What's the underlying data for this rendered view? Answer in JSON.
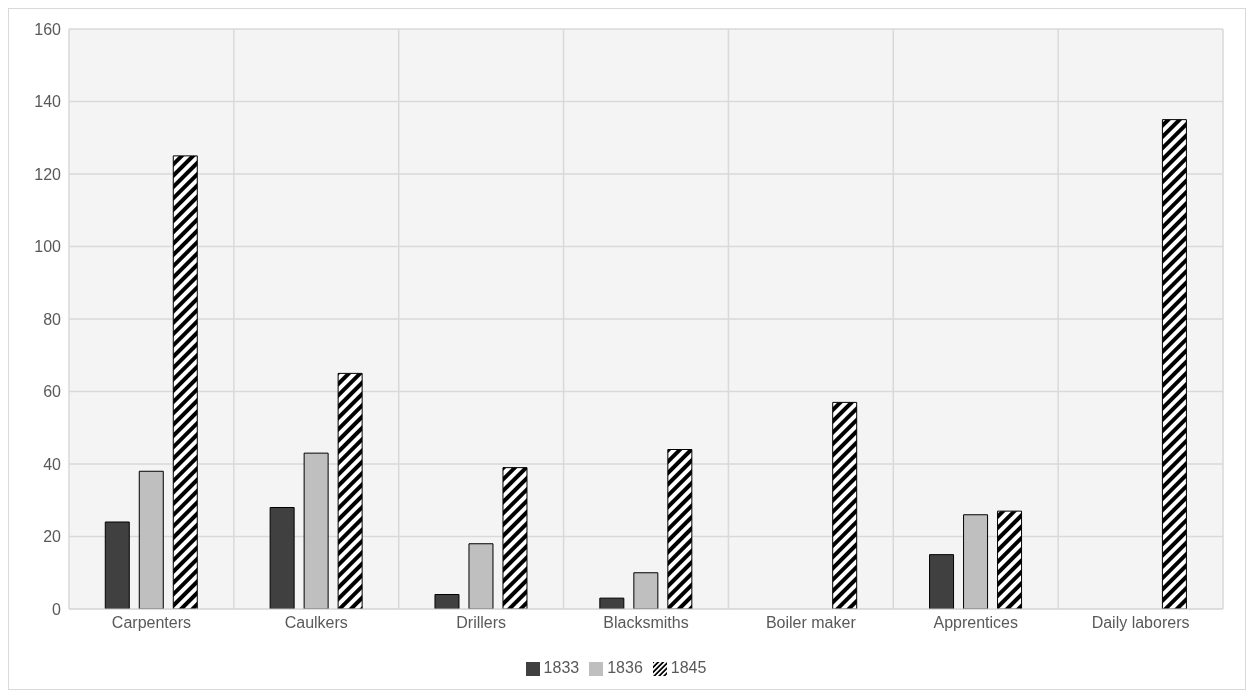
{
  "chart_data": {
    "type": "bar",
    "categories": [
      "Carpenters",
      "Caulkers",
      "Drillers",
      "Blacksmiths",
      "Boiler maker",
      "Apprentices",
      "Daily laborers"
    ],
    "series": [
      {
        "name": "1833",
        "color": "#404040",
        "values": [
          24,
          28,
          4,
          3,
          null,
          15,
          null
        ]
      },
      {
        "name": "1836",
        "color": "#bfbfbf",
        "values": [
          38,
          43,
          18,
          10,
          null,
          26,
          null
        ]
      },
      {
        "name": "1845",
        "color": "#000000",
        "values": [
          125,
          65,
          39,
          44,
          57,
          27,
          135
        ]
      }
    ],
    "ylim": [
      0,
      160
    ],
    "yticks": [
      0,
      20,
      40,
      60,
      80,
      100,
      120,
      140,
      160
    ],
    "grid": true,
    "legend": "bottom"
  }
}
